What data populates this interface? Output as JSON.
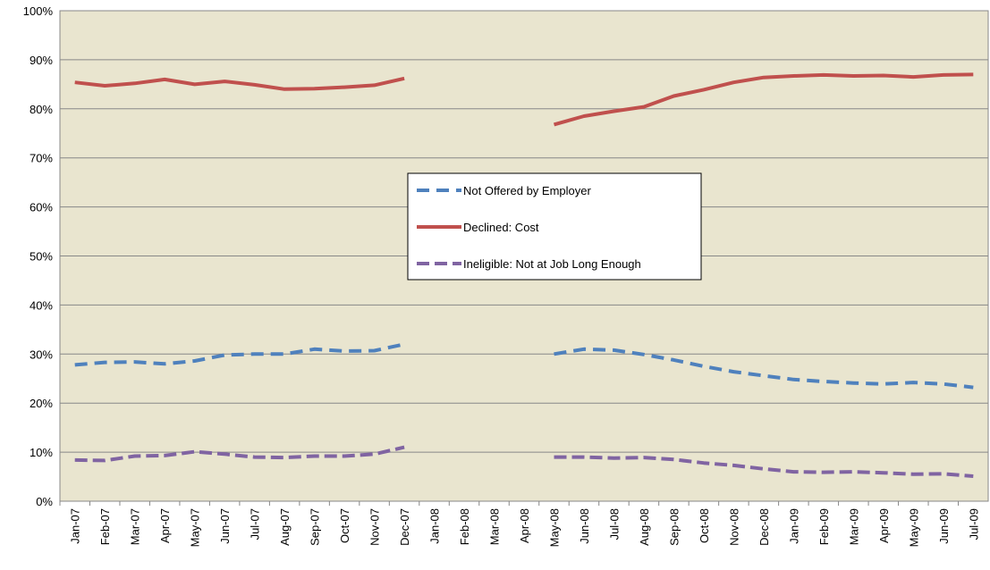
{
  "chart_data": {
    "type": "line",
    "categories": [
      "Jan-07",
      "Feb-07",
      "Mar-07",
      "Apr-07",
      "May-07",
      "Jun-07",
      "Jul-07",
      "Aug-07",
      "Sep-07",
      "Oct-07",
      "Nov-07",
      "Dec-07",
      "Jan-08",
      "Feb-08",
      "Mar-08",
      "Apr-08",
      "May-08",
      "Jun-08",
      "Jul-08",
      "Aug-08",
      "Sep-08",
      "Oct-08",
      "Nov-08",
      "Dec-08",
      "Jan-09",
      "Feb-09",
      "Mar-09",
      "Apr-09",
      "May-09",
      "Jun-09",
      "Jul-09"
    ],
    "series": [
      {
        "name": "Not Offered by Employer",
        "color": "#4f81bd",
        "dash": "14 8",
        "values": [
          27.8,
          28.3,
          28.4,
          28.0,
          28.6,
          29.8,
          30.0,
          30.0,
          31.0,
          30.6,
          30.7,
          32.0,
          null,
          null,
          null,
          null,
          30.0,
          31.0,
          30.8,
          29.9,
          28.8,
          27.5,
          26.4,
          25.6,
          24.8,
          24.4,
          24.1,
          23.9,
          24.2,
          23.9,
          23.2
        ]
      },
      {
        "name": "Declined: Cost",
        "color": "#c0504d",
        "dash": "none",
        "values": [
          85.4,
          84.7,
          85.2,
          86.0,
          85.0,
          85.6,
          84.9,
          84.0,
          84.1,
          84.4,
          84.8,
          86.2,
          null,
          null,
          null,
          null,
          76.8,
          78.5,
          79.5,
          80.4,
          82.6,
          83.9,
          85.4,
          86.4,
          86.7,
          86.9,
          86.7,
          86.8,
          86.5,
          86.9,
          87.0
        ]
      },
      {
        "name": "Ineligible: Not at Job Long Enough",
        "color": "#8064a2",
        "dash": "14 6",
        "values": [
          8.4,
          8.3,
          9.2,
          9.3,
          10.1,
          9.6,
          9.0,
          8.9,
          9.2,
          9.2,
          9.6,
          11.0,
          null,
          null,
          null,
          null,
          9.0,
          9.0,
          8.8,
          8.9,
          8.5,
          7.8,
          7.3,
          6.6,
          6.0,
          5.9,
          6.0,
          5.8,
          5.5,
          5.6,
          5.1
        ]
      }
    ],
    "ylim": [
      0,
      100
    ],
    "yticks": [
      {
        "value": 0,
        "label": "0%"
      },
      {
        "value": 10,
        "label": "10%"
      },
      {
        "value": 20,
        "label": "20%"
      },
      {
        "value": 30,
        "label": "30%"
      },
      {
        "value": 40,
        "label": "40%"
      },
      {
        "value": 50,
        "label": "50%"
      },
      {
        "value": 60,
        "label": "60%"
      },
      {
        "value": 70,
        "label": "70%"
      },
      {
        "value": 80,
        "label": "80%"
      },
      {
        "value": 90,
        "label": "90%"
      },
      {
        "value": 100,
        "label": "100%"
      }
    ],
    "grid": true
  }
}
